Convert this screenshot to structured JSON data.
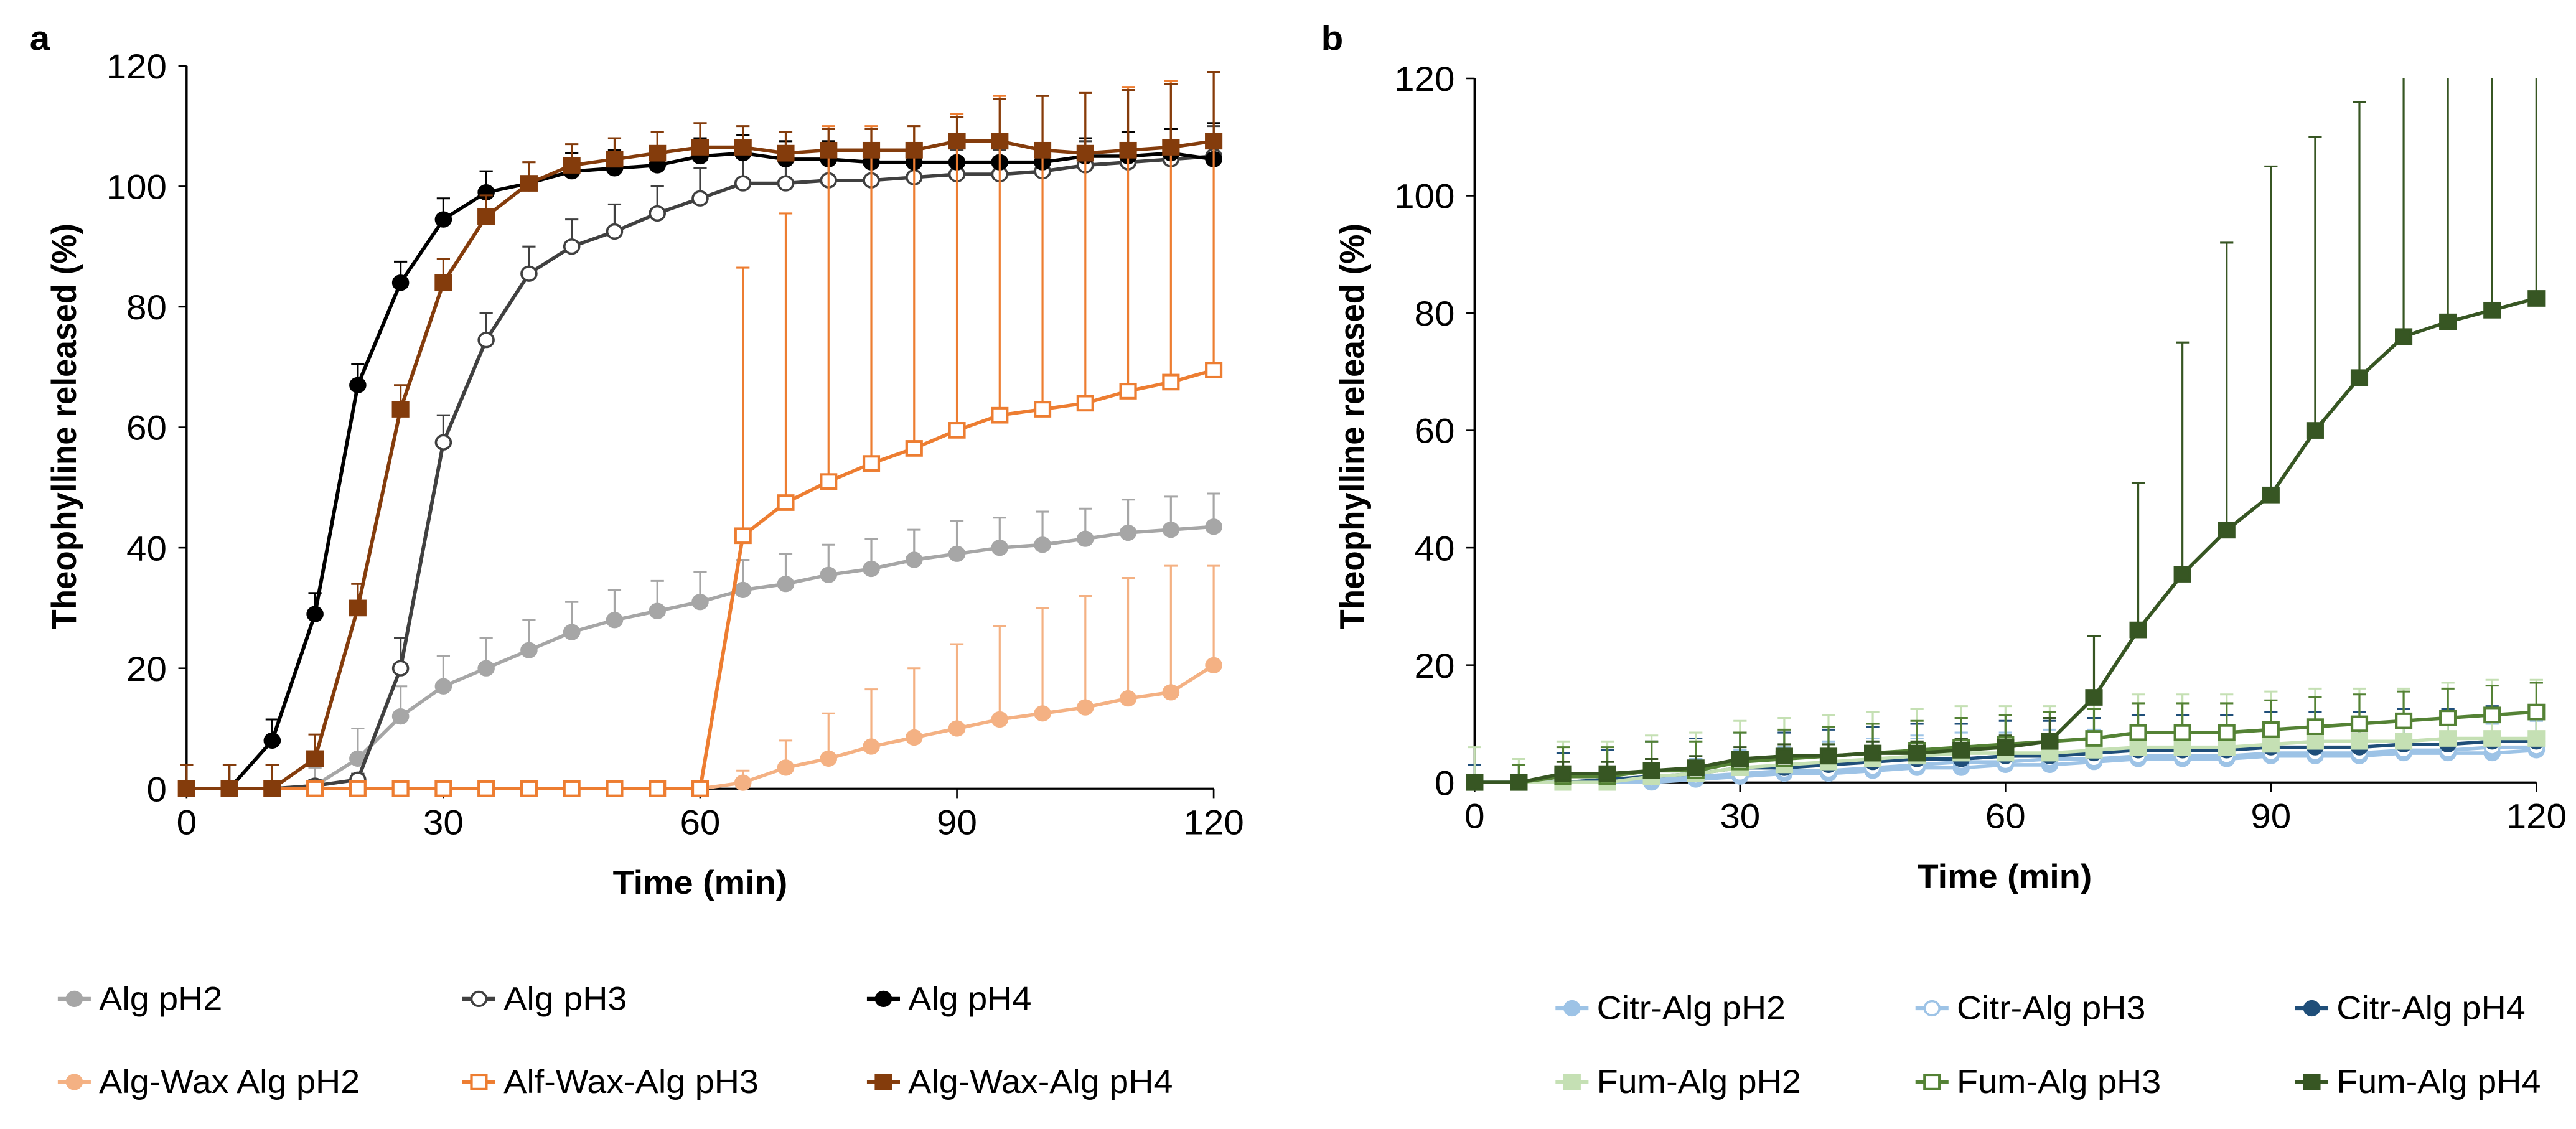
{
  "chart_data": [
    {
      "type": "line",
      "panel_label": "a",
      "xlabel": "Time (min)",
      "ylabel": "Theophylline released (%)",
      "xlim": [
        0,
        120
      ],
      "ylim": [
        0,
        120
      ],
      "xticks": [
        0,
        30,
        60,
        90,
        120
      ],
      "yticks": [
        0,
        20,
        40,
        60,
        80,
        100,
        120
      ],
      "grid": false,
      "legend_position": "bottom",
      "x": [
        0,
        5,
        10,
        15,
        20,
        25,
        30,
        35,
        40,
        45,
        50,
        55,
        60,
        65,
        70,
        75,
        80,
        85,
        90,
        95,
        100,
        105,
        110,
        115,
        120
      ],
      "series": [
        {
          "name": "Alg pH2",
          "color": "#a6a6a6",
          "marker": "circle",
          "fill": true,
          "values": [
            0,
            0,
            0,
            0.5,
            5,
            12,
            17,
            20,
            23,
            26,
            28,
            29.5,
            31,
            33,
            34,
            35.5,
            36.5,
            38,
            39,
            40,
            40.5,
            41.5,
            42.5,
            43,
            43.5
          ],
          "error": [
            4,
            4,
            4,
            3,
            5,
            5,
            5,
            5,
            5,
            5,
            5,
            5,
            5,
            5,
            5,
            5,
            5,
            5,
            5.5,
            5,
            5.5,
            5,
            5.5,
            5.5,
            5.5
          ]
        },
        {
          "name": "Alg pH3",
          "color": "#404040",
          "marker": "circle",
          "fill": false,
          "values": [
            0,
            0,
            0,
            0.5,
            1.5,
            20,
            57.5,
            74.5,
            85.5,
            90,
            92.5,
            95.5,
            98,
            100.5,
            100.5,
            101,
            101,
            101.5,
            102,
            102,
            102.5,
            103.5,
            104,
            104.5,
            105
          ],
          "error": [
            4,
            4,
            4,
            1,
            1,
            5,
            4.5,
            4.5,
            4.5,
            4.5,
            4.5,
            4.5,
            5,
            5,
            4,
            4,
            4,
            4,
            4,
            4,
            4,
            4,
            5,
            5,
            5
          ]
        },
        {
          "name": "Alg pH4",
          "color": "#000000",
          "marker": "circle",
          "fill": true,
          "values": [
            0,
            0,
            8,
            29,
            67,
            84,
            94.5,
            99,
            100.5,
            102.5,
            103,
            103.5,
            105,
            105.5,
            104.5,
            104.5,
            104,
            104,
            104,
            104,
            104,
            105,
            105,
            105.5,
            104.5
          ],
          "error": [
            4,
            4,
            3.5,
            3.5,
            3.5,
            3.5,
            3.5,
            3.5,
            1,
            3,
            3,
            3,
            3,
            3,
            3,
            3,
            3,
            3,
            3,
            3,
            3,
            3,
            4,
            4,
            6
          ]
        },
        {
          "name": "Alg-Wax Alg pH2",
          "color": "#f4b183",
          "marker": "circle",
          "fill": true,
          "values": [
            0,
            0,
            0,
            0,
            0,
            0,
            0,
            0,
            0,
            0,
            0,
            0,
            0,
            1,
            3.5,
            5,
            7,
            8.5,
            10,
            11.5,
            12.5,
            13.5,
            15,
            16,
            20.5
          ],
          "error": [
            0,
            0,
            0,
            0,
            0,
            0,
            0,
            0,
            0,
            0,
            0,
            0,
            0,
            2,
            4.5,
            7.5,
            9.5,
            11.5,
            14,
            15.5,
            17.5,
            18.5,
            20,
            21,
            16.5
          ]
        },
        {
          "name": "Alf-Wax-Alg pH3",
          "color": "#ed7d31",
          "marker": "square",
          "fill": false,
          "values": [
            0,
            0,
            0,
            0,
            0,
            0,
            0,
            0,
            0,
            0,
            0,
            0,
            0,
            42,
            47.5,
            51,
            54,
            56.5,
            59.5,
            62,
            63,
            64,
            66,
            67.5,
            69.5
          ],
          "error": [
            0,
            0,
            0,
            0,
            0,
            0,
            0,
            0,
            0,
            0,
            0,
            0,
            0,
            44.5,
            48,
            59,
            56,
            53.5,
            52.5,
            53,
            52,
            51.5,
            50.5,
            50,
            49.5
          ]
        },
        {
          "name": "Alg-Wax-Alg pH4",
          "color": "#843c0c",
          "marker": "square",
          "fill": true,
          "values": [
            0,
            0,
            0,
            5,
            30,
            63,
            84,
            95,
            100.5,
            103.5,
            104.5,
            105.5,
            106.5,
            106.5,
            105.5,
            106,
            106,
            106,
            107.5,
            107.5,
            106,
            105.5,
            106,
            106.5,
            107.5
          ],
          "error": [
            4,
            4,
            4,
            4,
            4,
            4,
            4,
            3.5,
            3.5,
            3.5,
            3.5,
            3.5,
            4,
            3.5,
            3.5,
            3.5,
            3.5,
            4,
            4,
            7,
            9,
            10,
            10,
            10.5,
            11.5
          ]
        }
      ]
    },
    {
      "type": "line",
      "panel_label": "b",
      "xlabel": "Time (min)",
      "ylabel": "Theophylline released (%)",
      "xlim": [
        0,
        120
      ],
      "ylim": [
        0,
        120
      ],
      "xticks": [
        0,
        30,
        60,
        90,
        120
      ],
      "yticks": [
        0,
        20,
        40,
        60,
        80,
        100,
        120
      ],
      "grid": false,
      "legend_position": "bottom",
      "x": [
        0,
        5,
        10,
        15,
        20,
        25,
        30,
        35,
        40,
        45,
        50,
        55,
        60,
        65,
        70,
        75,
        80,
        85,
        90,
        95,
        100,
        105,
        110,
        115,
        120
      ],
      "series": [
        {
          "name": "Citr-Alg pH2",
          "color": "#9dc3e6",
          "marker": "circle",
          "fill": true,
          "values": [
            0,
            0,
            0,
            0,
            0,
            0.5,
            1,
            1.5,
            1.5,
            2,
            2.5,
            2.5,
            3,
            3,
            3.5,
            4,
            4,
            4,
            4.5,
            4.5,
            4.5,
            5,
            5,
            5,
            5.5
          ],
          "error": [
            0,
            1,
            1,
            1,
            2,
            3,
            4,
            4,
            5,
            5,
            5,
            5,
            5,
            5,
            5,
            5,
            5,
            5,
            5,
            5,
            5,
            5,
            5,
            5,
            5
          ]
        },
        {
          "name": "Citr-Alg pH3",
          "color": "#9dc3e6",
          "marker": "circle",
          "fill": false,
          "values": [
            0,
            0,
            0,
            0,
            0.5,
            1,
            1.5,
            2,
            2,
            2.5,
            3,
            3.5,
            3.5,
            4,
            4,
            4.5,
            4.5,
            4.5,
            5,
            5,
            5,
            5.5,
            5.5,
            6,
            6
          ],
          "error": [
            0,
            1,
            1,
            1,
            2,
            3,
            4,
            4,
            5,
            5,
            5,
            5,
            5,
            5,
            5,
            5,
            5,
            5,
            5,
            5,
            5,
            5,
            5,
            5,
            5
          ]
        },
        {
          "name": "Citr-Alg pH4",
          "color": "#1f4e79",
          "marker": "circle",
          "fill": true,
          "values": [
            0,
            0,
            0,
            0.5,
            1,
            1.5,
            2.5,
            2.5,
            3,
            3.5,
            4,
            4,
            4.5,
            4.5,
            5,
            5.5,
            5.5,
            5.5,
            6,
            6,
            6,
            6.5,
            6.5,
            7,
            7
          ],
          "error": [
            3,
            3,
            5,
            5,
            6,
            6,
            6,
            6,
            6,
            6,
            6,
            6,
            6,
            6,
            6,
            6,
            6,
            6,
            6,
            6,
            6,
            6,
            6,
            6,
            6
          ]
        },
        {
          "name": "Fum-Alg pH2",
          "color": "#c5e0b4",
          "marker": "square",
          "fill": true,
          "values": [
            0,
            0,
            0,
            0,
            1,
            1.5,
            2.5,
            3,
            3.5,
            4,
            4.5,
            5,
            5,
            5,
            5.5,
            6,
            6,
            6,
            6.5,
            7,
            7,
            7,
            7.5,
            7.5,
            7.5
          ],
          "error": [
            6,
            4,
            7,
            7,
            7,
            7,
            8,
            8,
            8,
            8,
            8,
            8,
            8,
            8,
            9,
            9,
            9,
            9,
            9,
            9,
            9,
            9,
            9.5,
            10,
            10
          ]
        },
        {
          "name": "Fum-Alg pH3",
          "color": "#548235",
          "marker": "square",
          "fill": false,
          "values": [
            0,
            0,
            1,
            1,
            2,
            2,
            3.5,
            4,
            4.5,
            5,
            5.5,
            6,
            6.5,
            7,
            7.5,
            8.5,
            8.5,
            8.5,
            9,
            9.5,
            10,
            10.5,
            11,
            11.5,
            12
          ],
          "error": [
            0,
            3,
            5,
            5,
            5,
            5,
            5,
            5,
            5,
            5,
            5,
            5,
            5,
            5,
            5,
            5,
            5,
            5,
            5,
            5,
            5,
            5,
            5,
            5,
            5
          ]
        },
        {
          "name": "Fum-Alg pH4",
          "color": "#375623",
          "marker": "square",
          "fill": true,
          "values": [
            0,
            0,
            1.5,
            1.5,
            2,
            2.5,
            4,
            4.5,
            4.5,
            5,
            5,
            5.5,
            6,
            7,
            14.5,
            26,
            35.5,
            43,
            49,
            60,
            69,
            76,
            78.5,
            80.5,
            82.5
          ],
          "error": [
            0,
            0,
            2,
            2,
            2,
            2,
            2,
            2,
            2,
            2,
            2,
            2,
            2,
            4,
            10.5,
            25,
            39.5,
            49,
            56,
            50,
            47,
            45,
            45,
            45,
            45
          ]
        }
      ]
    }
  ]
}
